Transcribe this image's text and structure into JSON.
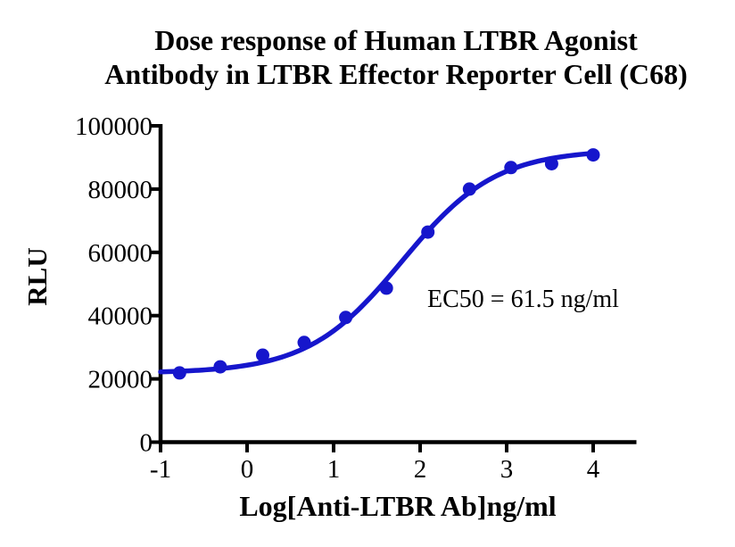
{
  "chart_data": {
    "type": "scatter",
    "title": "Dose response of Human LTBR Agonist Antibody in LTBR Effector Reporter Cell (C68)",
    "title_lines": [
      "Dose response of Human LTBR Agonist",
      "Antibody in LTBR Effector Reporter Cell (C68)"
    ],
    "xlabel": "Log[Anti-LTBR Ab]ng/ml",
    "ylabel": "RLU",
    "annotation": "EC50 = 61.5 ng/ml",
    "ec50_ng_ml": 61.5,
    "xlim": [
      -1,
      4.5
    ],
    "ylim": [
      0,
      100000
    ],
    "x_ticks": [
      -1,
      0,
      1,
      2,
      3,
      4
    ],
    "y_ticks": [
      0,
      20000,
      40000,
      60000,
      80000,
      100000
    ],
    "grid": false,
    "legend": false,
    "series": [
      {
        "name": "Anti-LTBR Ab",
        "points": [
          {
            "x": -0.78,
            "y": 21900
          },
          {
            "x": -0.31,
            "y": 23800
          },
          {
            "x": 0.18,
            "y": 27500
          },
          {
            "x": 0.66,
            "y": 31500
          },
          {
            "x": 1.14,
            "y": 39400
          },
          {
            "x": 1.61,
            "y": 48700
          },
          {
            "x": 2.09,
            "y": 66400
          },
          {
            "x": 2.57,
            "y": 80000
          },
          {
            "x": 3.05,
            "y": 86800
          },
          {
            "x": 3.52,
            "y": 88000
          },
          {
            "x": 4.0,
            "y": 90800
          }
        ]
      }
    ],
    "fit_curve": {
      "model": "4PL-sigmoid",
      "bottom": 21800,
      "top": 92500,
      "log_ec50": 1.789,
      "hill_slope": 0.8,
      "x_start": -1.0,
      "x_end": 4.0
    },
    "colors": {
      "curve": "#1616CC",
      "points": "#1616CC",
      "axis": "#000000",
      "text": "#000000"
    }
  }
}
